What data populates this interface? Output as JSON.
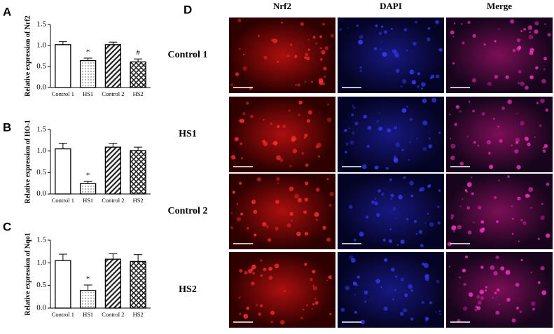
{
  "chart_data": [
    {
      "type": "bar",
      "panel": "A",
      "y_label": "Relative expression of Nrf2",
      "categories": [
        "Control 1",
        "HS1",
        "Control 2",
        "HS2"
      ],
      "values": [
        1.02,
        0.64,
        1.02,
        0.61
      ],
      "errors": [
        0.07,
        0.06,
        0.06,
        0.07
      ],
      "bar_labels": [
        null,
        "*",
        null,
        "#"
      ],
      "ylim": [
        0,
        1.5
      ],
      "yticks": [
        {
          "value": 0,
          "label": "0.0"
        },
        0.5,
        {
          "value": 1,
          "label": "1.0"
        },
        1.5
      ]
    },
    {
      "type": "bar",
      "panel": "B",
      "y_label": "Relative expression of HO-1",
      "categories": [
        "Control 1",
        "HS1",
        "Control 2",
        "HS2"
      ],
      "values": [
        1.05,
        0.24,
        1.09,
        1.01
      ],
      "errors": [
        0.13,
        0.05,
        0.09,
        0.08
      ],
      "bar_labels": [
        null,
        "*",
        null,
        null
      ],
      "ylim": [
        0,
        1.5
      ],
      "yticks": [
        {
          "value": 0,
          "label": "0.0"
        },
        0.5,
        {
          "value": 1,
          "label": "1.0"
        },
        1.5
      ]
    },
    {
      "type": "bar",
      "panel": "C",
      "y_label": "Relative expression of Nqo1",
      "categories": [
        "Control 1",
        "HS1",
        "Control 2",
        "HS2"
      ],
      "values": [
        1.05,
        0.39,
        1.08,
        1.03
      ],
      "errors": [
        0.14,
        0.12,
        0.12,
        0.15
      ],
      "bar_labels": [
        null,
        "*",
        null,
        null
      ],
      "ylim": [
        0,
        1.5
      ],
      "yticks": [
        {
          "value": 0,
          "label": "0.0"
        },
        0.5,
        {
          "value": 1,
          "label": "1.0"
        },
        1.5
      ]
    }
  ],
  "panel_d": {
    "panel": "D",
    "columns": [
      "Nrf2",
      "DAPI",
      "Merge"
    ],
    "rows": [
      "Control 1",
      "HS1",
      "Control 2",
      "HS2"
    ]
  }
}
